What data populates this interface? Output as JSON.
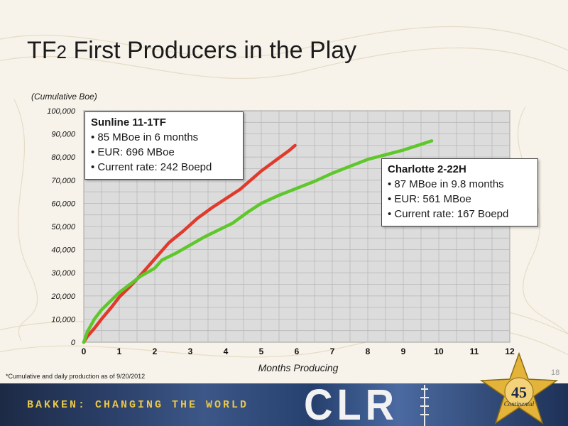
{
  "title_main": "TF",
  "title_sub": "2",
  "title_rest": " First Producers in the Play",
  "footnote": "*Cumulative and daily production as of 9/20/2012",
  "page_number": "18",
  "banner": {
    "tagline": "BAKKEN: CHANGING THE WORLD",
    "logo_text": "CLR",
    "badge_text": "Continental",
    "badge_number": "45"
  },
  "callouts": [
    {
      "heading": "Sunline 11-1TF",
      "lines": [
        "• 85 MBoe in 6 months",
        "• EUR: 696 MBoe",
        "• Current rate: 242 Boepd"
      ]
    },
    {
      "heading": "Charlotte 2-22H",
      "lines": [
        "• 87 MBoe in 9.8 months",
        "• EUR: 561 MBoe",
        "• Current rate: 167 Boepd"
      ]
    }
  ],
  "chart_data": {
    "type": "line",
    "ylabel": "(Cumulative Boe)",
    "xlabel": "Months Producing",
    "xlim": [
      0,
      12
    ],
    "ylim": [
      0,
      100000
    ],
    "x_ticks": [
      "0",
      "1",
      "2",
      "3",
      "4",
      "5",
      "6",
      "7",
      "8",
      "9",
      "10",
      "11",
      "12"
    ],
    "y_ticks": [
      "0",
      "10,000",
      "20,000",
      "30,000",
      "40,000",
      "50,000",
      "60,000",
      "70,000",
      "80,000",
      "90,000",
      "100,000"
    ],
    "grid": true,
    "series": [
      {
        "name": "Sunline 11-1TF",
        "color": "#e03a2c",
        "x": [
          0,
          0.1,
          0.3,
          0.5,
          0.8,
          1,
          1.3,
          1.6,
          2,
          2.4,
          2.8,
          3.2,
          3.6,
          4,
          4.4,
          4.7,
          5,
          5.4,
          5.8,
          5.95
        ],
        "y": [
          0,
          2500,
          6000,
          10000,
          15500,
          19500,
          24000,
          29000,
          36000,
          43000,
          48000,
          53500,
          58000,
          62000,
          66000,
          70000,
          74000,
          78500,
          83000,
          85000
        ]
      },
      {
        "name": "Charlotte 2-22H",
        "color": "#5ec72a",
        "x": [
          0,
          0.1,
          0.3,
          0.5,
          0.8,
          1,
          1.3,
          1.6,
          2,
          2.2,
          2.6,
          3,
          3.4,
          3.8,
          4.2,
          4.6,
          5,
          5.5,
          6,
          6.5,
          7,
          7.5,
          8,
          8.5,
          9,
          9.5,
          9.8
        ],
        "y": [
          0,
          4500,
          10000,
          14000,
          18500,
          21500,
          25000,
          28500,
          32000,
          35500,
          38500,
          42000,
          45500,
          48500,
          51500,
          56000,
          60000,
          63500,
          66500,
          69500,
          73000,
          76000,
          79000,
          81000,
          83000,
          85500,
          87000
        ]
      }
    ]
  }
}
